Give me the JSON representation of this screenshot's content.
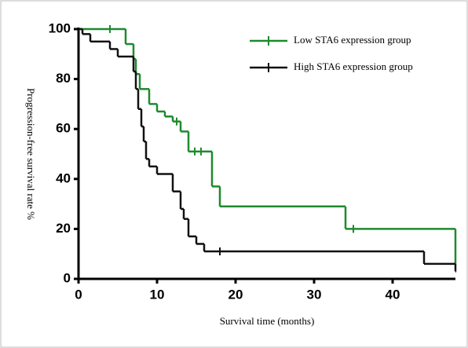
{
  "chart_data": {
    "type": "step",
    "xlabel": "Survival time (months)",
    "ylabel": "Progression-free survival rate %",
    "xlim": [
      0,
      48
    ],
    "xticks": [
      0,
      10,
      20,
      30,
      40
    ],
    "ylim": [
      0,
      100
    ],
    "yticks": [
      0,
      20,
      40,
      60,
      80,
      100
    ],
    "legend": "upper right",
    "series": [
      {
        "name": "Low STA6 expression group",
        "color": "#1e8a2e",
        "x": [
          0,
          6,
          7,
          7.3,
          7.8,
          9,
          10,
          11,
          12,
          13,
          14,
          17,
          18,
          34,
          48
        ],
        "values": [
          100,
          94,
          88,
          82,
          76,
          70,
          67,
          65,
          63,
          59,
          51,
          37,
          29,
          20,
          6
        ],
        "censor_x": [
          4,
          12.5,
          14.8,
          15.6,
          35
        ],
        "censor_values": [
          100,
          63,
          51,
          51,
          20
        ]
      },
      {
        "name": "High STA6 expression group",
        "color": "#111111",
        "x": [
          0,
          0.5,
          1.5,
          4,
          5,
          7,
          7.3,
          7.6,
          8,
          8.3,
          8.6,
          9,
          10,
          12,
          13,
          13.4,
          14,
          15,
          16,
          44,
          48
        ],
        "values": [
          100,
          98,
          95,
          92,
          89,
          83,
          76,
          68,
          61,
          55,
          48,
          45,
          42,
          35,
          28,
          24,
          17,
          14,
          11,
          6,
          3
        ],
        "censor_x": [
          18
        ],
        "censor_values": [
          11
        ]
      }
    ]
  }
}
